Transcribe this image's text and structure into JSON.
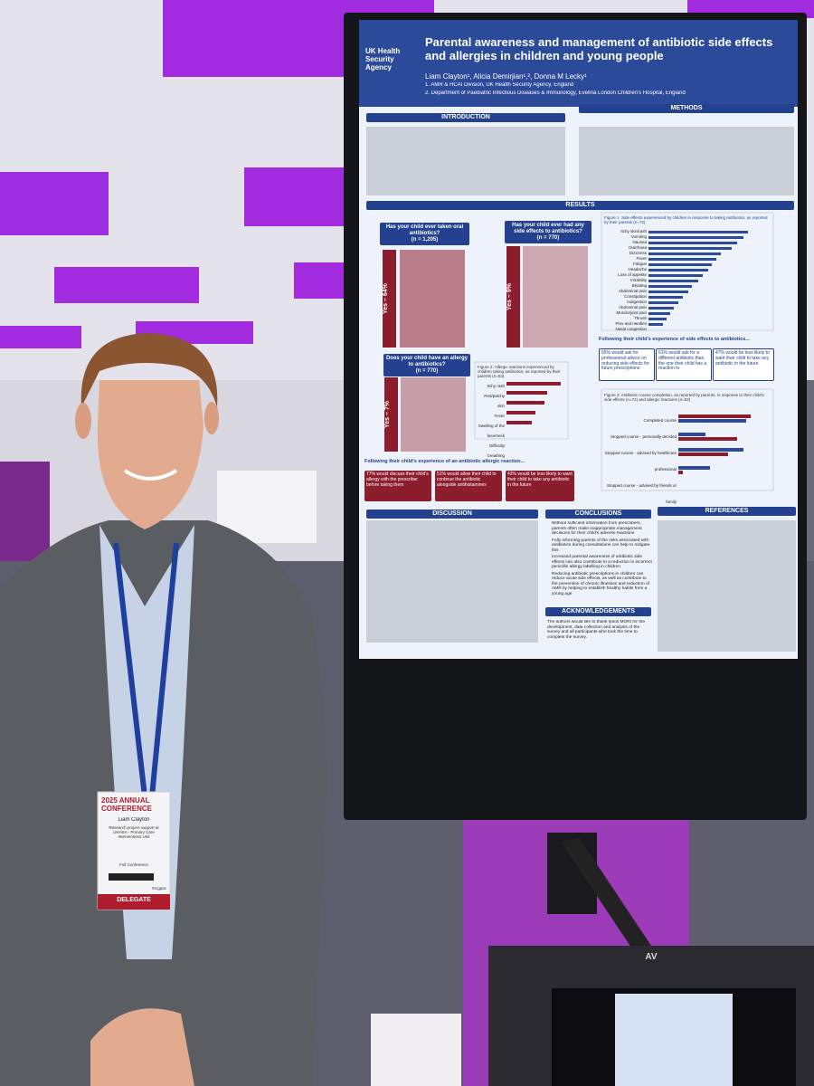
{
  "poster": {
    "org": "UK Health Security Agency",
    "title": "Parental awareness and management of antibiotic side effects and allergies in children and young people",
    "authors": "Liam Clayton¹, Alicia Demirjian¹,², Donna M Lecky¹",
    "affiliations": [
      "1.  AMR & HCAI Division, UK Health Security Agency, England",
      "2.  Department of Paediatric Infectious Diseases & Immunology, Evelina London Children's Hospital, England"
    ],
    "sections": {
      "introduction": "INTRODUCTION",
      "methods": "METHODS",
      "results": "RESULTS",
      "discussion": "DISCUSSION",
      "conclusions": "CONCLUSIONS",
      "acknowledgements": "ACKNOWLEDGEMENTS",
      "references": "REFERENCES"
    },
    "questions": [
      {
        "text": "Has your child ever taken oral antibiotics?",
        "n": "(n = 1,205)",
        "answer": "Yes – 64%"
      },
      {
        "text": "Has your child ever had any side effects to antibiotics?",
        "n": "(n = 770)",
        "answer": "Yes – 9%"
      },
      {
        "text": "Does your child have an allergy to antibiotics?",
        "n": "(n = 770)",
        "answer": "Yes – 7%"
      }
    ],
    "figure1": {
      "caption": "Figure 1. Side effects experienced by children in response to taking antibiotics, as reported by their parents (n=72)",
      "labels": [
        "Itchy skin/rash",
        "Vomiting",
        "Nausea",
        "Diarrhoea",
        "Dizziness",
        "Fever",
        "Fatigue",
        "Headache",
        "Loss of appetite",
        "Irritability",
        "Bloating",
        "Abdominal pain",
        "Constipation",
        "Indigestion",
        "Abdominal pain",
        "Muscle/joint pain",
        "Thrush",
        "Pins and needles",
        "Nasal congestion"
      ]
    },
    "figure2": {
      "caption": "Figure 2. Allergic reactions experienced by children taking antibiotics, as reported by their parents (n=53)",
      "labels": [
        "Itchy rash",
        "Red/patchy skin",
        "Fever",
        "Swelling of the face/neck",
        "Difficulty breathing"
      ]
    },
    "figure3": {
      "caption": "Figure 3. Antibiotic course completion, as reported by parents, in response to their child's side effects (n=72) and allergic reactions (n=53)",
      "labels": [
        "Completed course",
        "Stopped course - personally decided",
        "Stopped course - advised by healthcare professional",
        "Stopped course - advised by friends or family"
      ]
    },
    "side_effect_callouts": {
      "heading": "Following their child's experience of side effects to antibiotics...",
      "items": [
        "65% would ask for professional advice on reducing side effects for future prescriptions",
        "61% would ask for a different antibiotic than the one their child has a reaction to",
        "47% would be less likely to want their child to take any antibiotic in the future"
      ]
    },
    "allergy_callouts": {
      "heading": "Following their child's experience of an antibiotic allergic reaction...",
      "items": [
        "77% would discuss their child's allergy with the prescriber before taking them",
        "51% would allow their child to continue the antibiotic alongside antihistamines",
        "43% would be less likely to want their child to take any antibiotic in the future"
      ]
    },
    "conclusions": [
      "Without sufficient information from prescribers, parents often make inappropriate management decisions for their child's adverse reactions",
      "Fully informing parents of the risks associated with antibiotics during consultations can help to mitigate this",
      "Increased parental awareness of antibiotic side effects can also contribute to a reduction in incorrect penicillin allergy labelling in children",
      "Reducing antibiotic prescriptions in children can reduce acute side effects, as well as contribute to the prevention of chronic illnesses and reduction of AMR by helping to establish healthy habits from a young age"
    ],
    "acknowledgements": "The authors would like to thank Ipsos MORI for the development, data collection and analysis of the survey and all participants who took the time to complete the survey."
  },
  "badge": {
    "event": "2025 ANNUAL CONFERENCE",
    "name": "Liam Clayton",
    "role": "Research project support at UKHSA - Primary Care Interventions Unit",
    "ticket": "Full Conference",
    "type": "DELEGATE",
    "hashtag": "#rcgpac"
  },
  "kiosk": {
    "brand": "AV"
  }
}
